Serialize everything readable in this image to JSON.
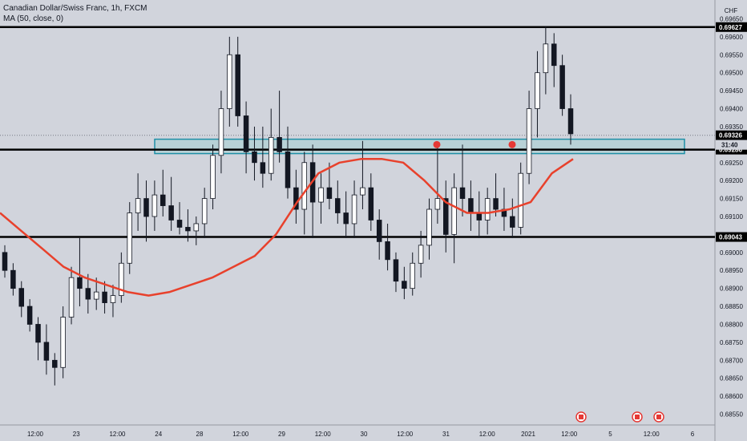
{
  "header": {
    "symbol_title": "Canadian Dollar/Swiss Franc, 1h, FXCM",
    "indicator_title": "MA (50, close, 0)"
  },
  "currency_label": "CHF",
  "colors": {
    "background": "#d1d4dc",
    "candle": "#131722",
    "ma_line": "#e8412c",
    "zone_border": "#1e8fa6",
    "zone_fill": "rgba(120,200,200,0.28)",
    "level_line": "#000000",
    "marker": "#e53935"
  },
  "chart_data": {
    "type": "candlestick",
    "price_axis": {
      "ticks": [
        "0.69650",
        "0.69600",
        "0.69550",
        "0.69500",
        "0.69450",
        "0.69400",
        "0.69350",
        "0.69250",
        "0.69200",
        "0.69150",
        "0.69100",
        "0.69000",
        "0.68950",
        "0.68900",
        "0.68850",
        "0.68800",
        "0.68750",
        "0.68700",
        "0.68650",
        "0.68600",
        "0.68550"
      ],
      "range": [
        0.6852,
        0.6968
      ]
    },
    "time_axis": {
      "ticks": [
        "12:00",
        "23",
        "12:00",
        "24",
        "28",
        "12:00",
        "29",
        "12:00",
        "30",
        "12:00",
        "31",
        "12:00",
        "2021",
        "12:00",
        "5",
        "12:00",
        "6"
      ]
    },
    "horizontal_levels": [
      {
        "price": 0.69627,
        "label": "0.69627"
      },
      {
        "price": 0.69286,
        "label": "0.69286"
      },
      {
        "price": 0.69043,
        "label": "0.69043"
      }
    ],
    "last_price": {
      "price": 0.69326,
      "label": "0.69326"
    },
    "countdown": "31:40",
    "zone": {
      "top": 0.69315,
      "bottom": 0.69275
    },
    "markers": [
      {
        "time": "30 14:00",
        "price": 0.693
      },
      {
        "time": "31 23:00",
        "price": 0.693
      }
    ],
    "moving_average": {
      "name": "MA (50, close, 0)",
      "values": [
        0.6911,
        0.6906,
        0.6901,
        0.6896,
        0.6893,
        0.6891,
        0.6889,
        0.6888,
        0.6889,
        0.6891,
        0.6893,
        0.6896,
        0.6899,
        0.6905,
        0.6914,
        0.6922,
        0.6925,
        0.6926,
        0.6926,
        0.6925,
        0.692,
        0.6914,
        0.6911,
        0.6911,
        0.6912,
        0.6914,
        0.6922,
        0.6926
      ]
    },
    "candles": [
      [
        0.69,
        0.6902,
        0.6893,
        0.6895
      ],
      [
        0.6895,
        0.6897,
        0.6888,
        0.689
      ],
      [
        0.689,
        0.6892,
        0.6882,
        0.6885
      ],
      [
        0.6885,
        0.6887,
        0.6878,
        0.688
      ],
      [
        0.688,
        0.6882,
        0.687,
        0.6875
      ],
      [
        0.6875,
        0.688,
        0.6866,
        0.687
      ],
      [
        0.687,
        0.6872,
        0.6863,
        0.6868
      ],
      [
        0.6868,
        0.6885,
        0.6865,
        0.6882
      ],
      [
        0.6882,
        0.6896,
        0.688,
        0.6893
      ],
      [
        0.6893,
        0.6904,
        0.6885,
        0.689
      ],
      [
        0.689,
        0.6894,
        0.6883,
        0.6887
      ],
      [
        0.6887,
        0.6893,
        0.6884,
        0.6889
      ],
      [
        0.6889,
        0.6892,
        0.6883,
        0.6886
      ],
      [
        0.6886,
        0.6891,
        0.6882,
        0.6888
      ],
      [
        0.6888,
        0.69,
        0.6886,
        0.6897
      ],
      [
        0.6897,
        0.6914,
        0.6894,
        0.6911
      ],
      [
        0.6911,
        0.6922,
        0.6906,
        0.6915
      ],
      [
        0.6915,
        0.692,
        0.6903,
        0.691
      ],
      [
        0.691,
        0.692,
        0.6906,
        0.6916
      ],
      [
        0.6916,
        0.6923,
        0.691,
        0.6913
      ],
      [
        0.6913,
        0.6921,
        0.6906,
        0.6909
      ],
      [
        0.6909,
        0.6914,
        0.6905,
        0.6907
      ],
      [
        0.6907,
        0.6912,
        0.6903,
        0.6906
      ],
      [
        0.6906,
        0.691,
        0.6902,
        0.6908
      ],
      [
        0.6908,
        0.6918,
        0.6904,
        0.6915
      ],
      [
        0.6915,
        0.693,
        0.6912,
        0.6927
      ],
      [
        0.6927,
        0.6945,
        0.6922,
        0.694
      ],
      [
        0.694,
        0.696,
        0.6935,
        0.6955
      ],
      [
        0.6955,
        0.696,
        0.6935,
        0.6938
      ],
      [
        0.6938,
        0.6942,
        0.6922,
        0.6928
      ],
      [
        0.6928,
        0.6935,
        0.692,
        0.6925
      ],
      [
        0.6925,
        0.6935,
        0.6918,
        0.6922
      ],
      [
        0.6922,
        0.694,
        0.692,
        0.6932
      ],
      [
        0.6932,
        0.6945,
        0.6925,
        0.6928
      ],
      [
        0.6928,
        0.6935,
        0.6915,
        0.6918
      ],
      [
        0.6918,
        0.6923,
        0.6908,
        0.6912
      ],
      [
        0.6912,
        0.6928,
        0.6905,
        0.6925
      ],
      [
        0.6925,
        0.693,
        0.6904,
        0.6914
      ],
      [
        0.6914,
        0.6922,
        0.6908,
        0.6918
      ],
      [
        0.6918,
        0.6925,
        0.6912,
        0.6915
      ],
      [
        0.6915,
        0.692,
        0.6908,
        0.6911
      ],
      [
        0.6911,
        0.6917,
        0.6904,
        0.6908
      ],
      [
        0.6908,
        0.692,
        0.6904,
        0.6916
      ],
      [
        0.6916,
        0.6931,
        0.6912,
        0.6918
      ],
      [
        0.6918,
        0.6922,
        0.6906,
        0.6909
      ],
      [
        0.6909,
        0.6912,
        0.6898,
        0.6903
      ],
      [
        0.6903,
        0.6908,
        0.6895,
        0.6898
      ],
      [
        0.6898,
        0.69,
        0.6889,
        0.6892
      ],
      [
        0.6892,
        0.6896,
        0.6887,
        0.689
      ],
      [
        0.689,
        0.69,
        0.6888,
        0.6897
      ],
      [
        0.6897,
        0.6906,
        0.6893,
        0.6902
      ],
      [
        0.6902,
        0.6915,
        0.6898,
        0.6912
      ],
      [
        0.6912,
        0.693,
        0.6908,
        0.6915
      ],
      [
        0.6915,
        0.692,
        0.69,
        0.6905
      ],
      [
        0.6905,
        0.6922,
        0.6897,
        0.6918
      ],
      [
        0.6918,
        0.693,
        0.691,
        0.6915
      ],
      [
        0.6915,
        0.692,
        0.6906,
        0.6911
      ],
      [
        0.6911,
        0.6917,
        0.6904,
        0.6909
      ],
      [
        0.6909,
        0.6918,
        0.6905,
        0.6915
      ],
      [
        0.6915,
        0.6922,
        0.691,
        0.6912
      ],
      [
        0.6912,
        0.6918,
        0.6906,
        0.691
      ],
      [
        0.691,
        0.6915,
        0.6904,
        0.6907
      ],
      [
        0.6907,
        0.6925,
        0.6905,
        0.6922
      ],
      [
        0.6922,
        0.6945,
        0.6919,
        0.694
      ],
      [
        0.694,
        0.6956,
        0.6932,
        0.695
      ],
      [
        0.695,
        0.6963,
        0.6944,
        0.6958
      ],
      [
        0.6958,
        0.6961,
        0.6946,
        0.6952
      ],
      [
        0.6952,
        0.6955,
        0.6938,
        0.694
      ],
      [
        0.694,
        0.6944,
        0.693,
        0.6933
      ]
    ]
  }
}
